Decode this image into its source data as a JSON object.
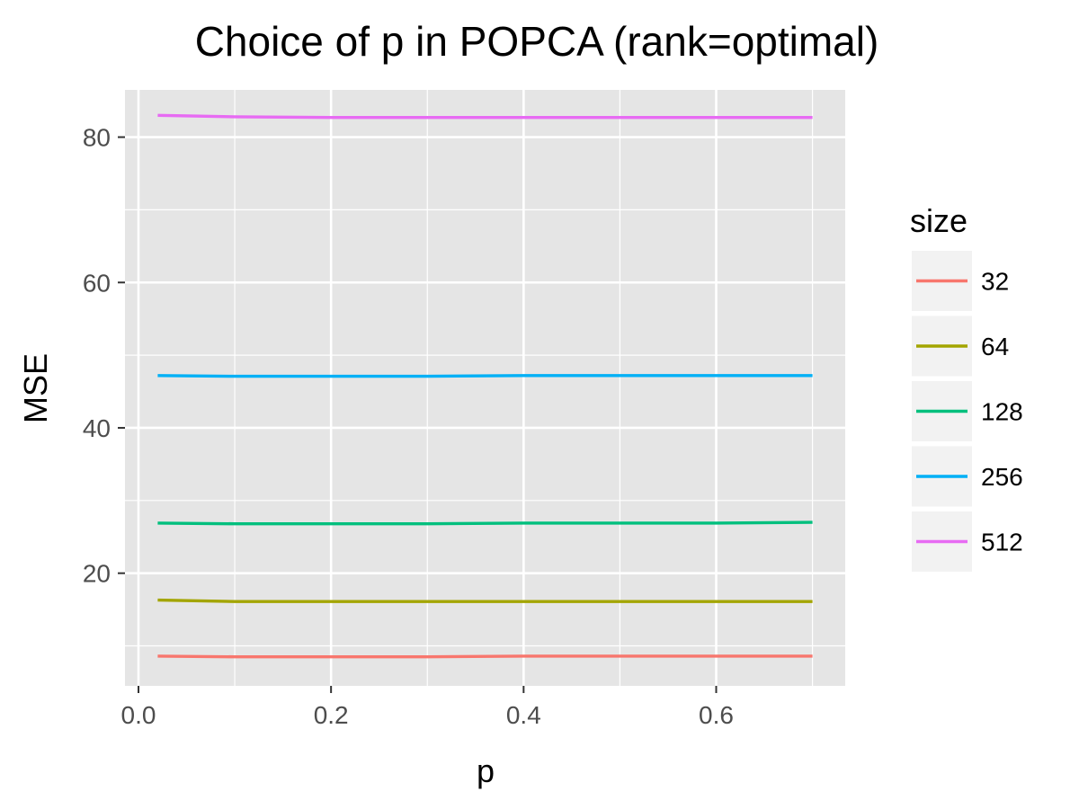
{
  "chart_data": {
    "type": "line",
    "title": "Choice of p in POPCA (rank=optimal)",
    "xlabel": "p",
    "ylabel": "MSE",
    "xlim": [
      -0.014,
      0.734
    ],
    "ylim": [
      4.5,
      86.5
    ],
    "x_ticks": [
      "0.0",
      "0.2",
      "0.4",
      "0.6"
    ],
    "x_tick_values": [
      0.0,
      0.2,
      0.4,
      0.6
    ],
    "y_ticks": [
      "20",
      "40",
      "60",
      "80"
    ],
    "y_tick_values": [
      20,
      40,
      60,
      80
    ],
    "x_minor_grid": [
      0.1,
      0.3,
      0.5,
      0.7
    ],
    "y_minor_grid": [
      10,
      30,
      50,
      70
    ],
    "grid": true,
    "panel_background": "#e5e5e5",
    "legend": {
      "title": "size",
      "position": "right"
    },
    "series": [
      {
        "name": "32",
        "color": "#F8766D",
        "x": [
          0.02,
          0.1,
          0.2,
          0.3,
          0.4,
          0.5,
          0.6,
          0.7
        ],
        "y": [
          8.6,
          8.5,
          8.5,
          8.5,
          8.6,
          8.6,
          8.6,
          8.6
        ]
      },
      {
        "name": "64",
        "color": "#A3A500",
        "x": [
          0.02,
          0.1,
          0.2,
          0.3,
          0.4,
          0.5,
          0.6,
          0.7
        ],
        "y": [
          16.3,
          16.1,
          16.1,
          16.1,
          16.1,
          16.1,
          16.1,
          16.1
        ]
      },
      {
        "name": "128",
        "color": "#00BF7D",
        "x": [
          0.02,
          0.1,
          0.2,
          0.3,
          0.4,
          0.5,
          0.6,
          0.7
        ],
        "y": [
          26.9,
          26.8,
          26.8,
          26.8,
          26.9,
          26.9,
          26.9,
          27.0
        ]
      },
      {
        "name": "256",
        "color": "#00B0F6",
        "x": [
          0.02,
          0.1,
          0.2,
          0.3,
          0.4,
          0.5,
          0.6,
          0.7
        ],
        "y": [
          47.2,
          47.1,
          47.1,
          47.1,
          47.2,
          47.2,
          47.2,
          47.2
        ]
      },
      {
        "name": "512",
        "color": "#E76BF3",
        "x": [
          0.02,
          0.1,
          0.2,
          0.3,
          0.4,
          0.5,
          0.6,
          0.7
        ],
        "y": [
          83.0,
          82.8,
          82.7,
          82.7,
          82.7,
          82.7,
          82.7,
          82.7
        ]
      }
    ]
  }
}
